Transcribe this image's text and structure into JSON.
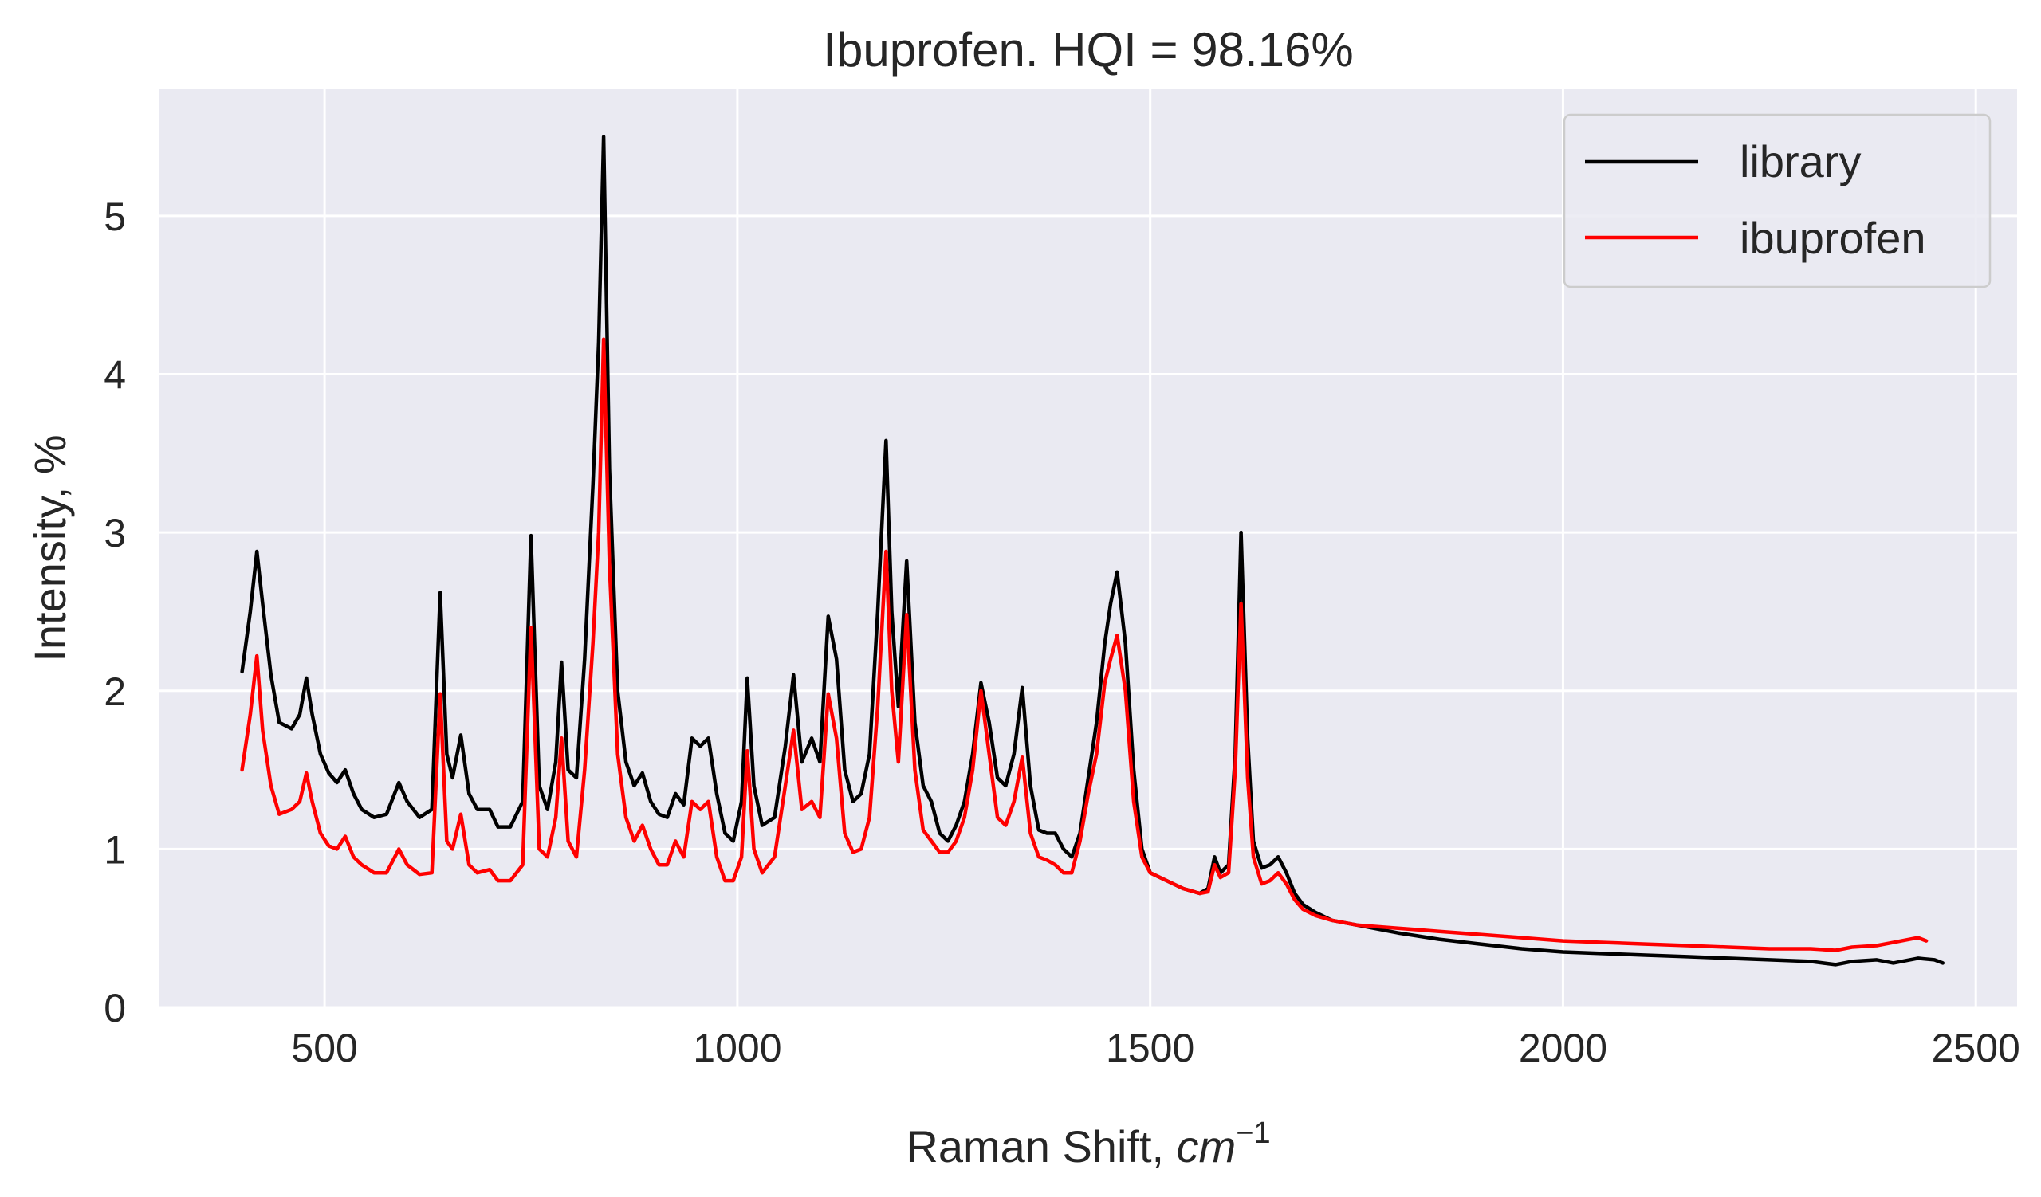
{
  "chart_data": {
    "type": "line",
    "title": "Ibuprofen. HQI = 98.16%",
    "xlabel": "Raman Shift, ",
    "xlabel_unit_base": "cm",
    "xlabel_unit_exp": "−1",
    "ylabel": "Intensity, %",
    "xlim": [
      300,
      2550
    ],
    "ylim": [
      0,
      5.8
    ],
    "xticks": [
      500,
      1000,
      1500,
      2000,
      2500
    ],
    "yticks": [
      0,
      1,
      2,
      3,
      4,
      5
    ],
    "xtick_labels": [
      "500",
      "1000",
      "1500",
      "2000",
      "2500"
    ],
    "ytick_labels": [
      "0",
      "1",
      "2",
      "3",
      "4",
      "5"
    ],
    "grid": true,
    "legend_position": "top-right",
    "background": "#eaeaf2",
    "series": [
      {
        "name": "library",
        "color": "#000000",
        "x": [
          400,
          410,
          418,
          425,
          435,
          445,
          460,
          470,
          478,
          485,
          495,
          505,
          515,
          525,
          535,
          545,
          560,
          575,
          590,
          600,
          615,
          630,
          640,
          648,
          655,
          665,
          675,
          685,
          700,
          710,
          725,
          740,
          750,
          760,
          770,
          780,
          787,
          795,
          805,
          815,
          825,
          832,
          838,
          845,
          855,
          865,
          875,
          885,
          895,
          905,
          915,
          925,
          935,
          945,
          955,
          965,
          975,
          985,
          995,
          1005,
          1012,
          1020,
          1030,
          1045,
          1058,
          1068,
          1078,
          1090,
          1100,
          1110,
          1120,
          1130,
          1140,
          1150,
          1160,
          1170,
          1180,
          1187,
          1195,
          1205,
          1215,
          1225,
          1235,
          1245,
          1255,
          1265,
          1275,
          1285,
          1295,
          1305,
          1315,
          1325,
          1335,
          1345,
          1355,
          1365,
          1375,
          1385,
          1395,
          1405,
          1415,
          1425,
          1435,
          1445,
          1452,
          1460,
          1470,
          1480,
          1490,
          1500,
          1520,
          1540,
          1560,
          1570,
          1578,
          1585,
          1595,
          1603,
          1610,
          1618,
          1625,
          1635,
          1645,
          1655,
          1665,
          1675,
          1685,
          1700,
          1720,
          1750,
          1800,
          1850,
          1900,
          1950,
          2000,
          2050,
          2100,
          2150,
          2200,
          2250,
          2300,
          2330,
          2350,
          2380,
          2400,
          2430,
          2450,
          2460
        ],
        "values": [
          2.12,
          2.5,
          2.88,
          2.55,
          2.1,
          1.8,
          1.76,
          1.85,
          2.08,
          1.85,
          1.6,
          1.48,
          1.42,
          1.5,
          1.35,
          1.25,
          1.2,
          1.22,
          1.42,
          1.3,
          1.2,
          1.25,
          2.62,
          1.6,
          1.45,
          1.72,
          1.35,
          1.25,
          1.25,
          1.14,
          1.14,
          1.3,
          2.98,
          1.4,
          1.25,
          1.55,
          2.18,
          1.5,
          1.45,
          2.2,
          3.3,
          4.2,
          5.5,
          3.4,
          2.0,
          1.55,
          1.4,
          1.48,
          1.3,
          1.22,
          1.2,
          1.35,
          1.28,
          1.7,
          1.65,
          1.7,
          1.35,
          1.1,
          1.05,
          1.3,
          2.08,
          1.4,
          1.15,
          1.2,
          1.65,
          2.1,
          1.55,
          1.7,
          1.55,
          2.47,
          2.2,
          1.5,
          1.3,
          1.35,
          1.6,
          2.5,
          3.58,
          2.5,
          1.9,
          2.82,
          1.8,
          1.4,
          1.3,
          1.1,
          1.05,
          1.15,
          1.3,
          1.6,
          2.05,
          1.8,
          1.45,
          1.4,
          1.6,
          2.02,
          1.4,
          1.12,
          1.1,
          1.1,
          1.0,
          0.95,
          1.1,
          1.45,
          1.8,
          2.3,
          2.55,
          2.75,
          2.3,
          1.5,
          1.0,
          0.85,
          0.8,
          0.75,
          0.72,
          0.75,
          0.95,
          0.85,
          0.9,
          1.6,
          3.0,
          1.7,
          1.05,
          0.88,
          0.9,
          0.95,
          0.85,
          0.72,
          0.65,
          0.6,
          0.55,
          0.52,
          0.47,
          0.43,
          0.4,
          0.37,
          0.35,
          0.34,
          0.33,
          0.32,
          0.31,
          0.3,
          0.29,
          0.27,
          0.29,
          0.3,
          0.28,
          0.31,
          0.3,
          0.28
        ]
      },
      {
        "name": "ibuprofen",
        "color": "#ff0000",
        "x": [
          400,
          410,
          418,
          425,
          435,
          445,
          460,
          470,
          478,
          485,
          495,
          505,
          515,
          525,
          535,
          545,
          560,
          575,
          590,
          600,
          615,
          630,
          640,
          648,
          655,
          665,
          675,
          685,
          700,
          710,
          725,
          740,
          750,
          760,
          770,
          780,
          787,
          795,
          805,
          815,
          825,
          832,
          838,
          845,
          855,
          865,
          875,
          885,
          895,
          905,
          915,
          925,
          935,
          945,
          955,
          965,
          975,
          985,
          995,
          1005,
          1012,
          1020,
          1030,
          1045,
          1058,
          1068,
          1078,
          1090,
          1100,
          1110,
          1120,
          1130,
          1140,
          1150,
          1160,
          1170,
          1180,
          1187,
          1195,
          1205,
          1215,
          1225,
          1235,
          1245,
          1255,
          1265,
          1275,
          1285,
          1295,
          1305,
          1315,
          1325,
          1335,
          1345,
          1355,
          1365,
          1375,
          1385,
          1395,
          1405,
          1415,
          1425,
          1435,
          1445,
          1452,
          1460,
          1470,
          1480,
          1490,
          1500,
          1520,
          1540,
          1560,
          1570,
          1578,
          1585,
          1595,
          1603,
          1610,
          1618,
          1625,
          1635,
          1645,
          1655,
          1665,
          1675,
          1685,
          1700,
          1720,
          1750,
          1800,
          1850,
          1900,
          1950,
          2000,
          2050,
          2100,
          2150,
          2200,
          2250,
          2300,
          2330,
          2350,
          2380,
          2400,
          2430,
          2440
        ],
        "values": [
          1.5,
          1.85,
          2.22,
          1.75,
          1.4,
          1.22,
          1.25,
          1.3,
          1.48,
          1.3,
          1.1,
          1.02,
          1.0,
          1.08,
          0.95,
          0.9,
          0.85,
          0.85,
          1.0,
          0.9,
          0.84,
          0.85,
          1.98,
          1.05,
          1.0,
          1.22,
          0.9,
          0.85,
          0.87,
          0.8,
          0.8,
          0.9,
          2.4,
          1.0,
          0.95,
          1.2,
          1.7,
          1.05,
          0.95,
          1.5,
          2.3,
          3.0,
          4.22,
          2.8,
          1.6,
          1.2,
          1.05,
          1.15,
          1.0,
          0.9,
          0.9,
          1.05,
          0.95,
          1.3,
          1.25,
          1.3,
          0.95,
          0.8,
          0.8,
          0.95,
          1.62,
          1.0,
          0.85,
          0.95,
          1.4,
          1.75,
          1.25,
          1.3,
          1.2,
          1.98,
          1.7,
          1.1,
          0.98,
          1.0,
          1.2,
          1.9,
          2.88,
          2.0,
          1.55,
          2.48,
          1.5,
          1.12,
          1.05,
          0.98,
          0.98,
          1.05,
          1.2,
          1.5,
          2.0,
          1.6,
          1.2,
          1.15,
          1.3,
          1.58,
          1.1,
          0.95,
          0.93,
          0.9,
          0.85,
          0.85,
          1.05,
          1.35,
          1.6,
          2.05,
          2.2,
          2.35,
          2.0,
          1.3,
          0.95,
          0.85,
          0.8,
          0.75,
          0.72,
          0.73,
          0.9,
          0.82,
          0.85,
          1.5,
          2.55,
          1.45,
          0.95,
          0.78,
          0.8,
          0.85,
          0.78,
          0.68,
          0.62,
          0.58,
          0.55,
          0.52,
          0.5,
          0.48,
          0.46,
          0.44,
          0.42,
          0.41,
          0.4,
          0.39,
          0.38,
          0.37,
          0.37,
          0.36,
          0.38,
          0.39,
          0.41,
          0.44,
          0.42
        ]
      }
    ]
  }
}
